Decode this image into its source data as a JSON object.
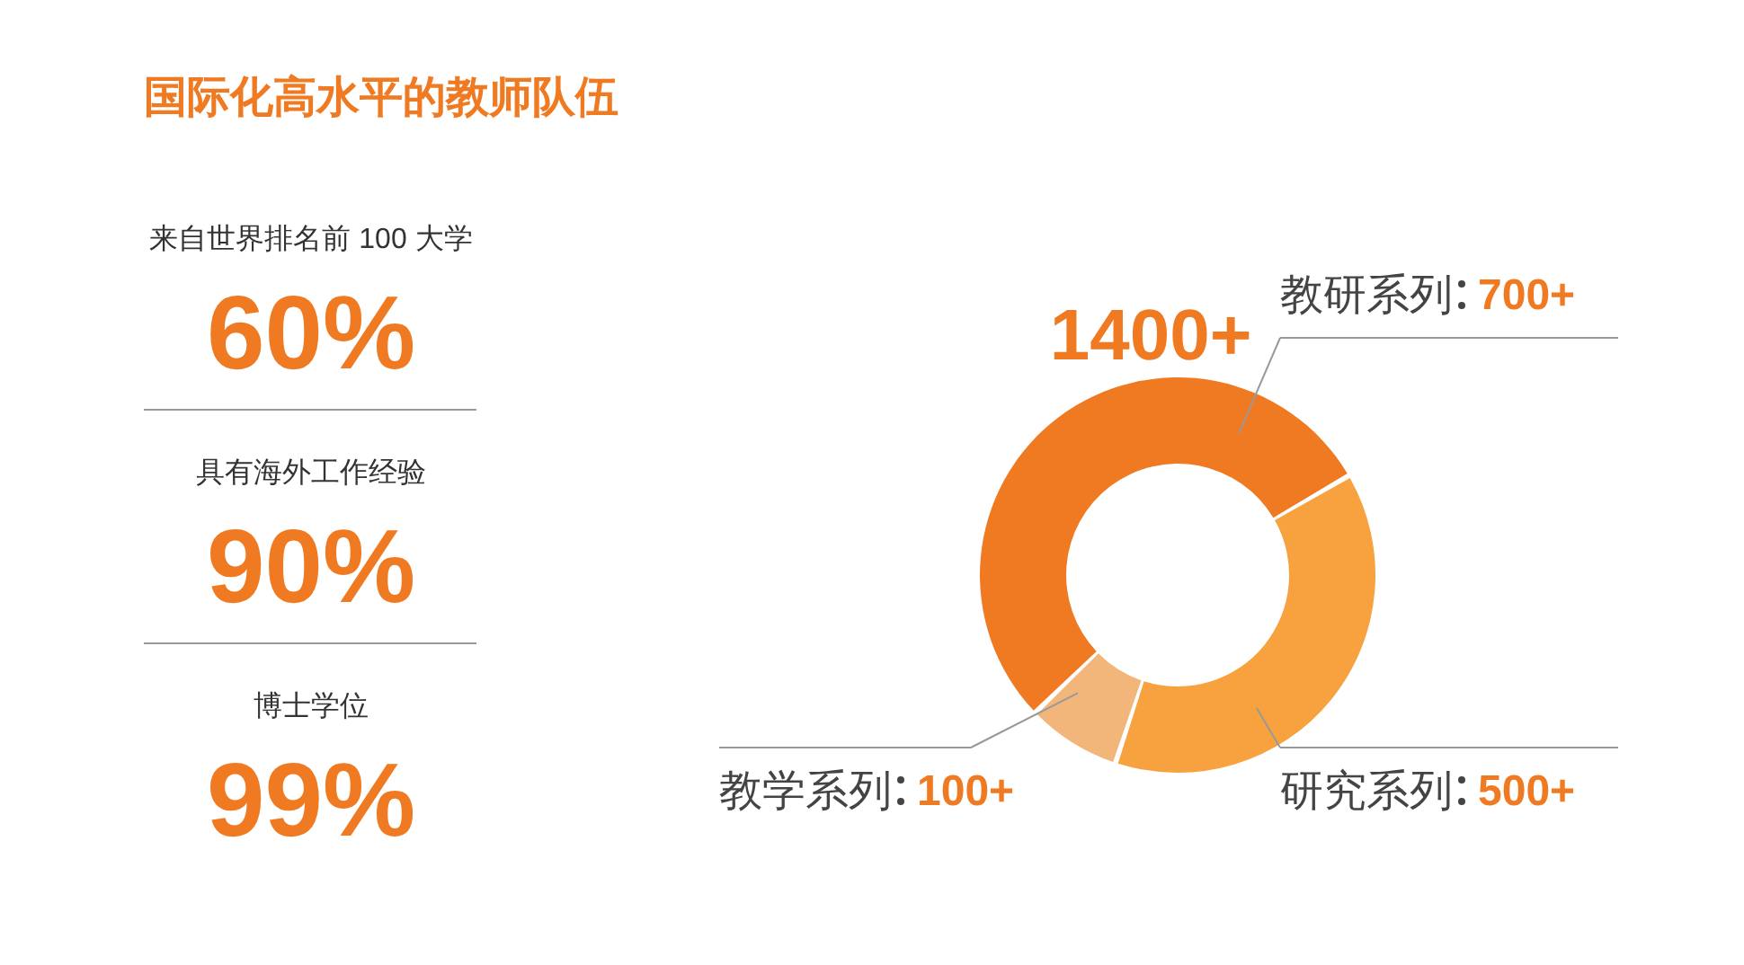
{
  "chart_data": [
    {
      "type": "other",
      "title": "国际化高水平的教师队伍",
      "categories": [
        "来自世界排名前 100 大学",
        "具有海外工作经验",
        "博士学位"
      ],
      "values": [
        60,
        90,
        99
      ],
      "value_labels": [
        "60%",
        "90%",
        "99%"
      ],
      "color": "#f07a22"
    },
    {
      "type": "donut",
      "categories": [
        "教研系列",
        "研究系列",
        "教学系列"
      ],
      "values": [
        700,
        500,
        100
      ],
      "value_labels": [
        "700+",
        "500+",
        "100+"
      ],
      "colors": [
        "#f07a22",
        "#f7a23e",
        "#f2b57a"
      ],
      "annotations": [
        "1400+"
      ]
    }
  ]
}
